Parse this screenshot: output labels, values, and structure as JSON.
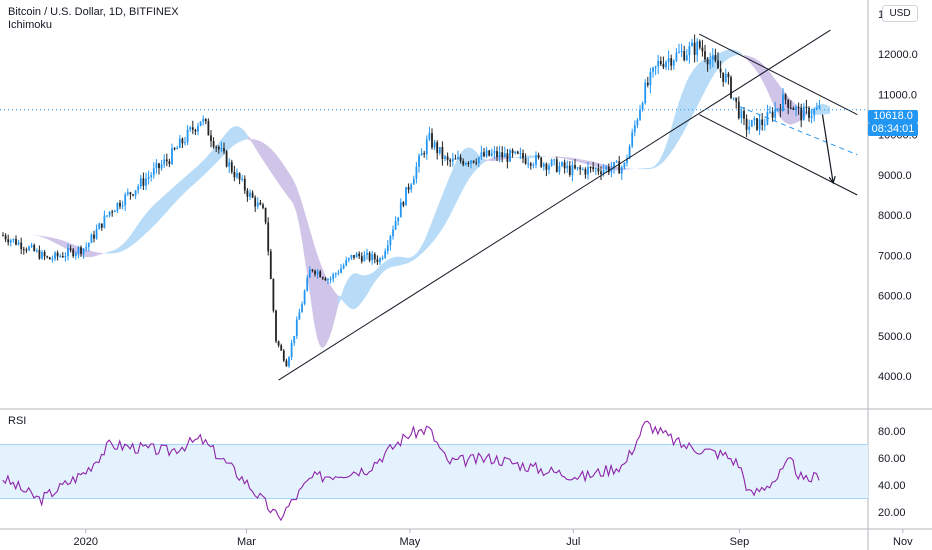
{
  "header": {
    "symbol_line": "Bitcoin / U.S. Dollar, 1D, BITFINEX",
    "indicator": "Ichimoku",
    "currency_button": "USD"
  },
  "rsi_panel": {
    "label": "RSI"
  },
  "price_tags": {
    "last_price": "10618.0",
    "countdown": "08:34:01"
  },
  "colors": {
    "up": "#2196f3",
    "down": "#222222",
    "cloud_bull": "#b8dcf7",
    "cloud_bear": "#d1c4e9",
    "rsi_line": "#8e24aa",
    "rsi_band": "#e3f2fd",
    "rsi_level": "#64b5f6",
    "accent": "#2196f3"
  },
  "chart_data": [
    {
      "type": "candlestick",
      "title": "Bitcoin / U.S. Dollar, 1D, BITFINEX",
      "indicator": "Ichimoku",
      "x_ticks": [
        "2020",
        "Mar",
        "May",
        "Jul",
        "Sep",
        "Nov"
      ],
      "y_ticks": [
        4000,
        5000,
        6000,
        7000,
        8000,
        9000,
        10000,
        11000,
        12000,
        13000
      ],
      "ylim": [
        3500,
        13500
      ],
      "last_price": 10618.0,
      "price_path": [
        {
          "date": "2019-12-01",
          "close": 7500
        },
        {
          "date": "2019-12-10",
          "close": 7200
        },
        {
          "date": "2019-12-18",
          "close": 6900
        },
        {
          "date": "2020-01-01",
          "close": 7200
        },
        {
          "date": "2020-01-10",
          "close": 8100
        },
        {
          "date": "2020-01-20",
          "close": 8700
        },
        {
          "date": "2020-02-01",
          "close": 9400
        },
        {
          "date": "2020-02-13",
          "close": 10400
        },
        {
          "date": "2020-02-20",
          "close": 9600
        },
        {
          "date": "2020-03-01",
          "close": 8600
        },
        {
          "date": "2020-03-08",
          "close": 8000
        },
        {
          "date": "2020-03-12",
          "close": 4900
        },
        {
          "date": "2020-03-16",
          "close": 4300
        },
        {
          "date": "2020-03-25",
          "close": 6700
        },
        {
          "date": "2020-04-01",
          "close": 6400
        },
        {
          "date": "2020-04-10",
          "close": 7000
        },
        {
          "date": "2020-04-20",
          "close": 6900
        },
        {
          "date": "2020-05-01",
          "close": 8800
        },
        {
          "date": "2020-05-08",
          "close": 9900
        },
        {
          "date": "2020-05-15",
          "close": 9300
        },
        {
          "date": "2020-06-01",
          "close": 9500
        },
        {
          "date": "2020-06-15",
          "close": 9400
        },
        {
          "date": "2020-07-01",
          "close": 9100
        },
        {
          "date": "2020-07-20",
          "close": 9200
        },
        {
          "date": "2020-07-27",
          "close": 11000
        },
        {
          "date": "2020-08-02",
          "close": 11800
        },
        {
          "date": "2020-08-17",
          "close": 12200
        },
        {
          "date": "2020-08-27",
          "close": 11400
        },
        {
          "date": "2020-09-03",
          "close": 10200
        },
        {
          "date": "2020-09-10",
          "close": 10300
        },
        {
          "date": "2020-09-18",
          "close": 10900
        },
        {
          "date": "2020-09-24",
          "close": 10500
        },
        {
          "date": "2020-10-01",
          "close": 10618
        }
      ],
      "drawings": [
        {
          "kind": "uptrend-line",
          "from": {
            "date": "2020-03-13",
            "value": 3900
          },
          "to": {
            "date": "2020-10-05",
            "value": 12600
          }
        },
        {
          "kind": "channel-upper",
          "from": {
            "date": "2020-08-17",
            "value": 12500
          },
          "to": {
            "date": "2020-10-15",
            "value": 10500
          }
        },
        {
          "kind": "channel-lower",
          "from": {
            "date": "2020-08-17",
            "value": 10500
          },
          "to": {
            "date": "2020-10-15",
            "value": 8500
          }
        },
        {
          "kind": "channel-midline",
          "from": {
            "date": "2020-09-01",
            "value": 10700
          },
          "to": {
            "date": "2020-10-15",
            "value": 9500
          }
        },
        {
          "kind": "target-arrow",
          "from": {
            "date": "2020-10-02",
            "value": 10500
          },
          "to": {
            "date": "2020-10-06",
            "value": 8800
          }
        }
      ]
    },
    {
      "type": "line",
      "title": "RSI",
      "y_ticks": [
        20,
        40,
        60,
        80
      ],
      "ylim": [
        10,
        90
      ],
      "bands": {
        "upper": 70,
        "lower": 30
      },
      "series": [
        {
          "values_by_date": [
            {
              "date": "2019-12-01",
              "value": 45
            },
            {
              "date": "2019-12-15",
              "value": 29
            },
            {
              "date": "2020-01-01",
              "value": 50
            },
            {
              "date": "2020-01-10",
              "value": 70
            },
            {
              "date": "2020-02-01",
              "value": 65
            },
            {
              "date": "2020-02-13",
              "value": 74
            },
            {
              "date": "2020-03-01",
              "value": 42
            },
            {
              "date": "2020-03-13",
              "value": 15
            },
            {
              "date": "2020-03-25",
              "value": 45
            },
            {
              "date": "2020-04-15",
              "value": 52
            },
            {
              "date": "2020-04-30",
              "value": 77
            },
            {
              "date": "2020-05-08",
              "value": 82
            },
            {
              "date": "2020-05-15",
              "value": 57
            },
            {
              "date": "2020-06-01",
              "value": 60
            },
            {
              "date": "2020-06-20",
              "value": 51
            },
            {
              "date": "2020-07-05",
              "value": 46
            },
            {
              "date": "2020-07-20",
              "value": 55
            },
            {
              "date": "2020-07-28",
              "value": 86
            },
            {
              "date": "2020-08-10",
              "value": 70
            },
            {
              "date": "2020-08-27",
              "value": 62
            },
            {
              "date": "2020-09-01",
              "value": 55
            },
            {
              "date": "2020-09-05",
              "value": 32
            },
            {
              "date": "2020-09-15",
              "value": 45
            },
            {
              "date": "2020-09-20",
              "value": 58
            },
            {
              "date": "2020-09-25",
              "value": 42
            },
            {
              "date": "2020-10-01",
              "value": 48
            }
          ]
        }
      ]
    }
  ]
}
